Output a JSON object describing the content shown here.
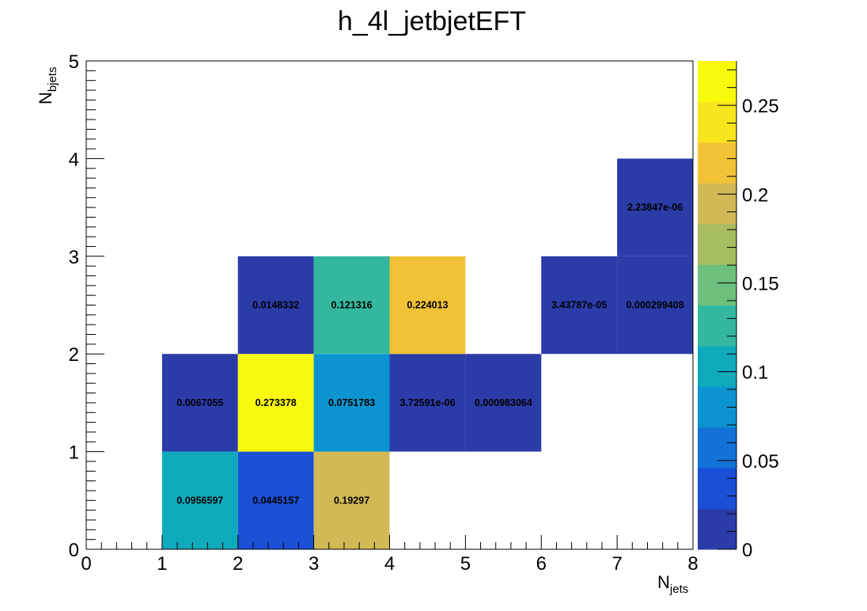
{
  "chart_data": {
    "type": "heatmap",
    "title": "h_4l_jetbjetEFT",
    "xlabel": {
      "main": "N",
      "sub": "jets"
    },
    "ylabel": {
      "main": "N",
      "sub": "bjets"
    },
    "xlim": [
      0,
      8
    ],
    "ylim": [
      0,
      5
    ],
    "x_ticks": [
      "0",
      "1",
      "2",
      "3",
      "4",
      "5",
      "6",
      "7",
      "8"
    ],
    "y_ticks": [
      "0",
      "1",
      "2",
      "3",
      "4",
      "5"
    ],
    "z_range": [
      0,
      0.275
    ],
    "z_ticks": [
      "0",
      "0.05",
      "0.1",
      "0.15",
      "0.2",
      "0.25"
    ],
    "colormap": [
      "#2b3ba8",
      "#1a4fd6",
      "#1272d8",
      "#0b94cf",
      "#0eaabc",
      "#33b89f",
      "#6cbf7c",
      "#a6bd61",
      "#d1b955",
      "#f2c236",
      "#f8e51d",
      "#f8fa0d"
    ],
    "cells": [
      {
        "x": 1,
        "y": 0,
        "z": 0.0956597,
        "label": "0.0956597"
      },
      {
        "x": 2,
        "y": 0,
        "z": 0.0445157,
        "label": "0.0445157"
      },
      {
        "x": 3,
        "y": 0,
        "z": 0.19297,
        "label": "0.19297"
      },
      {
        "x": 1,
        "y": 1,
        "z": 0.0067055,
        "label": "0.0067055"
      },
      {
        "x": 2,
        "y": 1,
        "z": 0.273378,
        "label": "0.273378"
      },
      {
        "x": 3,
        "y": 1,
        "z": 0.0751783,
        "label": "0.0751783"
      },
      {
        "x": 4,
        "y": 1,
        "z": 3.72591e-06,
        "label": "3.72591e-06"
      },
      {
        "x": 5,
        "y": 1,
        "z": 0.000983064,
        "label": "0.000983064"
      },
      {
        "x": 2,
        "y": 2,
        "z": 0.0148332,
        "label": "0.0148332"
      },
      {
        "x": 3,
        "y": 2,
        "z": 0.121316,
        "label": "0.121316"
      },
      {
        "x": 4,
        "y": 2,
        "z": 0.224013,
        "label": "0.224013"
      },
      {
        "x": 6,
        "y": 2,
        "z": 3.43787e-05,
        "label": "3.43787e-05"
      },
      {
        "x": 7,
        "y": 2,
        "z": 0.000299408,
        "label": "0.000299408"
      },
      {
        "x": 7,
        "y": 3,
        "z": 2.23847e-06,
        "label": "2.23847e-06"
      }
    ]
  }
}
